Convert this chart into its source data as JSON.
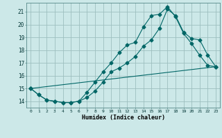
{
  "title": "",
  "xlabel": "Humidex (Indice chaleur)",
  "background_color": "#cce8e8",
  "grid_color": "#9dbfbf",
  "line_color": "#006666",
  "xlim": [
    -0.5,
    23.5
  ],
  "ylim": [
    13.5,
    21.7
  ],
  "yticks": [
    14,
    15,
    16,
    17,
    18,
    19,
    20,
    21
  ],
  "xticks": [
    0,
    1,
    2,
    3,
    4,
    5,
    6,
    7,
    8,
    9,
    10,
    11,
    12,
    13,
    14,
    15,
    16,
    17,
    18,
    19,
    20,
    21,
    22,
    23
  ],
  "line1_x": [
    0,
    1,
    2,
    3,
    4,
    5,
    6,
    7,
    8,
    9,
    10,
    11,
    12,
    13,
    14,
    15,
    16,
    17,
    18,
    19,
    20,
    21,
    22,
    23
  ],
  "line1_y": [
    15.0,
    14.5,
    14.1,
    14.0,
    13.9,
    13.9,
    14.0,
    14.3,
    14.8,
    15.5,
    16.3,
    16.6,
    17.0,
    17.5,
    18.3,
    18.8,
    19.7,
    21.2,
    20.7,
    19.4,
    18.9,
    18.8,
    17.6,
    16.7
  ],
  "line2_x": [
    0,
    1,
    2,
    3,
    4,
    5,
    6,
    7,
    8,
    9,
    10,
    11,
    12,
    13,
    14,
    15,
    16,
    17,
    18,
    19,
    20,
    21,
    22,
    23
  ],
  "line2_y": [
    15.0,
    14.5,
    14.1,
    14.0,
    13.9,
    13.9,
    14.0,
    14.7,
    15.5,
    16.3,
    17.0,
    17.8,
    18.4,
    18.6,
    19.8,
    20.7,
    20.8,
    21.4,
    20.6,
    19.3,
    18.5,
    17.6,
    16.8,
    16.7
  ],
  "line3_x": [
    0,
    23
  ],
  "line3_y": [
    15.0,
    16.7
  ]
}
